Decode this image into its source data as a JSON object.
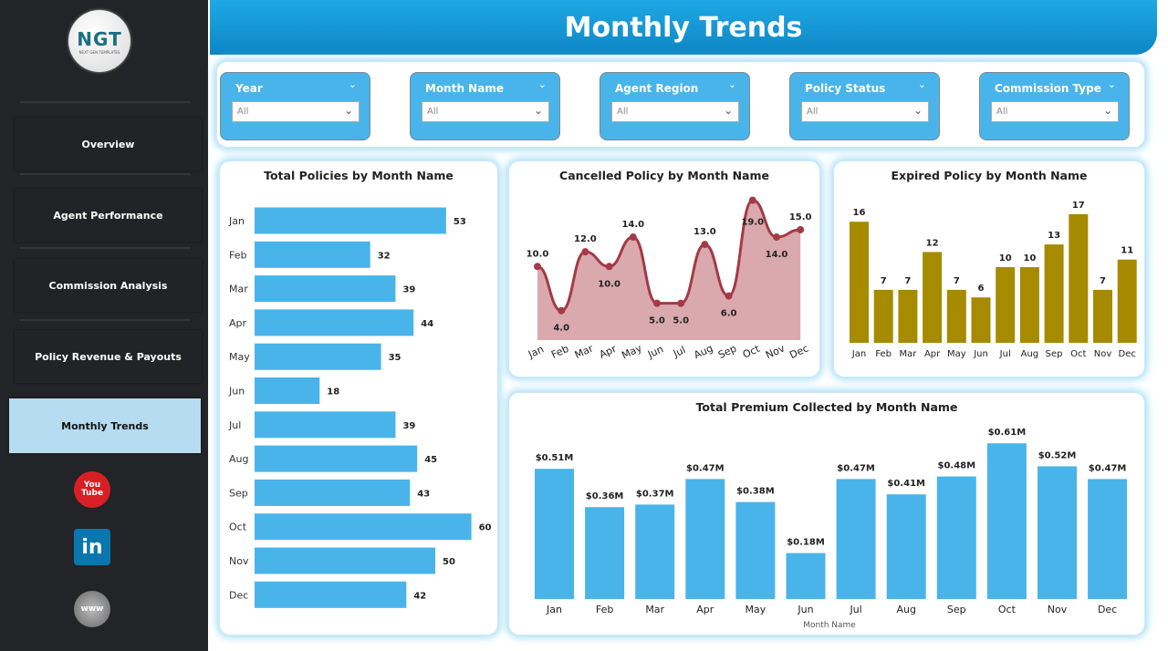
{
  "logo": {
    "text": "NGT",
    "sub": "NEXT GEN TEMPLATES"
  },
  "sidebar": {
    "items": [
      {
        "label": "Overview"
      },
      {
        "label": "Agent Performance"
      },
      {
        "label": "Commission Analysis"
      },
      {
        "label": "Policy Revenue & Payouts"
      },
      {
        "label": "Monthly Trends",
        "active": true
      }
    ],
    "social": [
      {
        "icon": "youtube-icon",
        "label": "You Tube"
      },
      {
        "icon": "linkedin-icon",
        "label": "in"
      },
      {
        "icon": "globe-www-icon",
        "label": "www"
      }
    ]
  },
  "header": {
    "title": "Monthly Trends"
  },
  "filters": [
    {
      "label": "Year",
      "value": "All"
    },
    {
      "label": "Month Name",
      "value": "All"
    },
    {
      "label": "Agent Region",
      "value": "All"
    },
    {
      "label": "Policy Status",
      "value": "All"
    },
    {
      "label": "Commission Type",
      "value": "All"
    }
  ],
  "colors": {
    "accent": "#49b4ea",
    "line": "#a33a46",
    "area": "#d9a9ad",
    "gold": "#a68a00",
    "sidebar": "#232427"
  },
  "chart_data": [
    {
      "type": "bar",
      "orientation": "horizontal",
      "title": "Total Policies by Month Name",
      "categories": [
        "Jan",
        "Feb",
        "Mar",
        "Apr",
        "May",
        "Jun",
        "Jul",
        "Aug",
        "Sep",
        "Oct",
        "Nov",
        "Dec"
      ],
      "values": [
        53,
        32,
        39,
        44,
        35,
        18,
        39,
        45,
        43,
        60,
        50,
        42
      ]
    },
    {
      "type": "area",
      "title": "Cancelled Policy by Month Name",
      "categories": [
        "Jan",
        "Feb",
        "Mar",
        "Apr",
        "May",
        "Jun",
        "Jul",
        "Aug",
        "Sep",
        "Oct",
        "Nov",
        "Dec"
      ],
      "values": [
        10,
        4,
        12,
        10,
        14,
        5,
        5,
        13,
        6,
        19,
        14,
        15
      ],
      "labels": [
        "10.0",
        "4.0",
        "12.0",
        "10.0",
        "14.0",
        "5.0",
        "5.0",
        "13.0",
        "6.0",
        "19.0",
        "14.0",
        "15.0"
      ]
    },
    {
      "type": "bar",
      "title": "Expired Policy by Month Name",
      "categories": [
        "Jan",
        "Feb",
        "Mar",
        "Apr",
        "May",
        "Jun",
        "Jul",
        "Aug",
        "Sep",
        "Oct",
        "Nov",
        "Dec"
      ],
      "values": [
        16,
        7,
        7,
        12,
        7,
        6,
        10,
        10,
        13,
        17,
        7,
        11
      ]
    },
    {
      "type": "bar",
      "title": "Total Premium Collected by Month Name",
      "xlabel": "Month Name",
      "categories": [
        "Jan",
        "Feb",
        "Mar",
        "Apr",
        "May",
        "Jun",
        "Jul",
        "Aug",
        "Sep",
        "Oct",
        "Nov",
        "Dec"
      ],
      "values": [
        0.51,
        0.36,
        0.37,
        0.47,
        0.38,
        0.18,
        0.47,
        0.41,
        0.48,
        0.61,
        0.52,
        0.47
      ],
      "labels": [
        "$0.51M",
        "$0.36M",
        "$0.37M",
        "$0.47M",
        "$0.38M",
        "$0.18M",
        "$0.47M",
        "$0.41M",
        "$0.48M",
        "$0.61M",
        "$0.52M",
        "$0.47M"
      ]
    }
  ]
}
